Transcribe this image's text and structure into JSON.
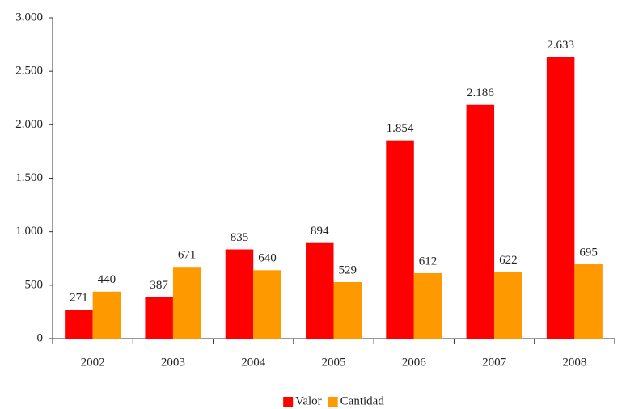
{
  "chart_data": {
    "type": "bar",
    "categories": [
      "2002",
      "2003",
      "2004",
      "2005",
      "2006",
      "2007",
      "2008"
    ],
    "series": [
      {
        "name": "Valor",
        "color": "#ff0000",
        "values": [
          271,
          387,
          835,
          894,
          1854,
          2186,
          2633
        ],
        "value_labels": [
          "271",
          "387",
          "835",
          "894",
          "1.854",
          "2.186",
          "2.633"
        ]
      },
      {
        "name": "Cantidad",
        "color": "#ff9900",
        "values": [
          440,
          671,
          640,
          529,
          612,
          622,
          695
        ]
      }
    ],
    "ylim": [
      0,
      3000
    ],
    "yticks": [
      0,
      500,
      {
        "value": 1000,
        "label": "1.000"
      },
      {
        "value": 1500,
        "label": "1.500"
      },
      {
        "value": 2000,
        "label": "2.000"
      },
      {
        "value": 2500,
        "label": "2.500"
      },
      {
        "value": 3000,
        "label": "3.000"
      }
    ],
    "legend": "bottom"
  }
}
